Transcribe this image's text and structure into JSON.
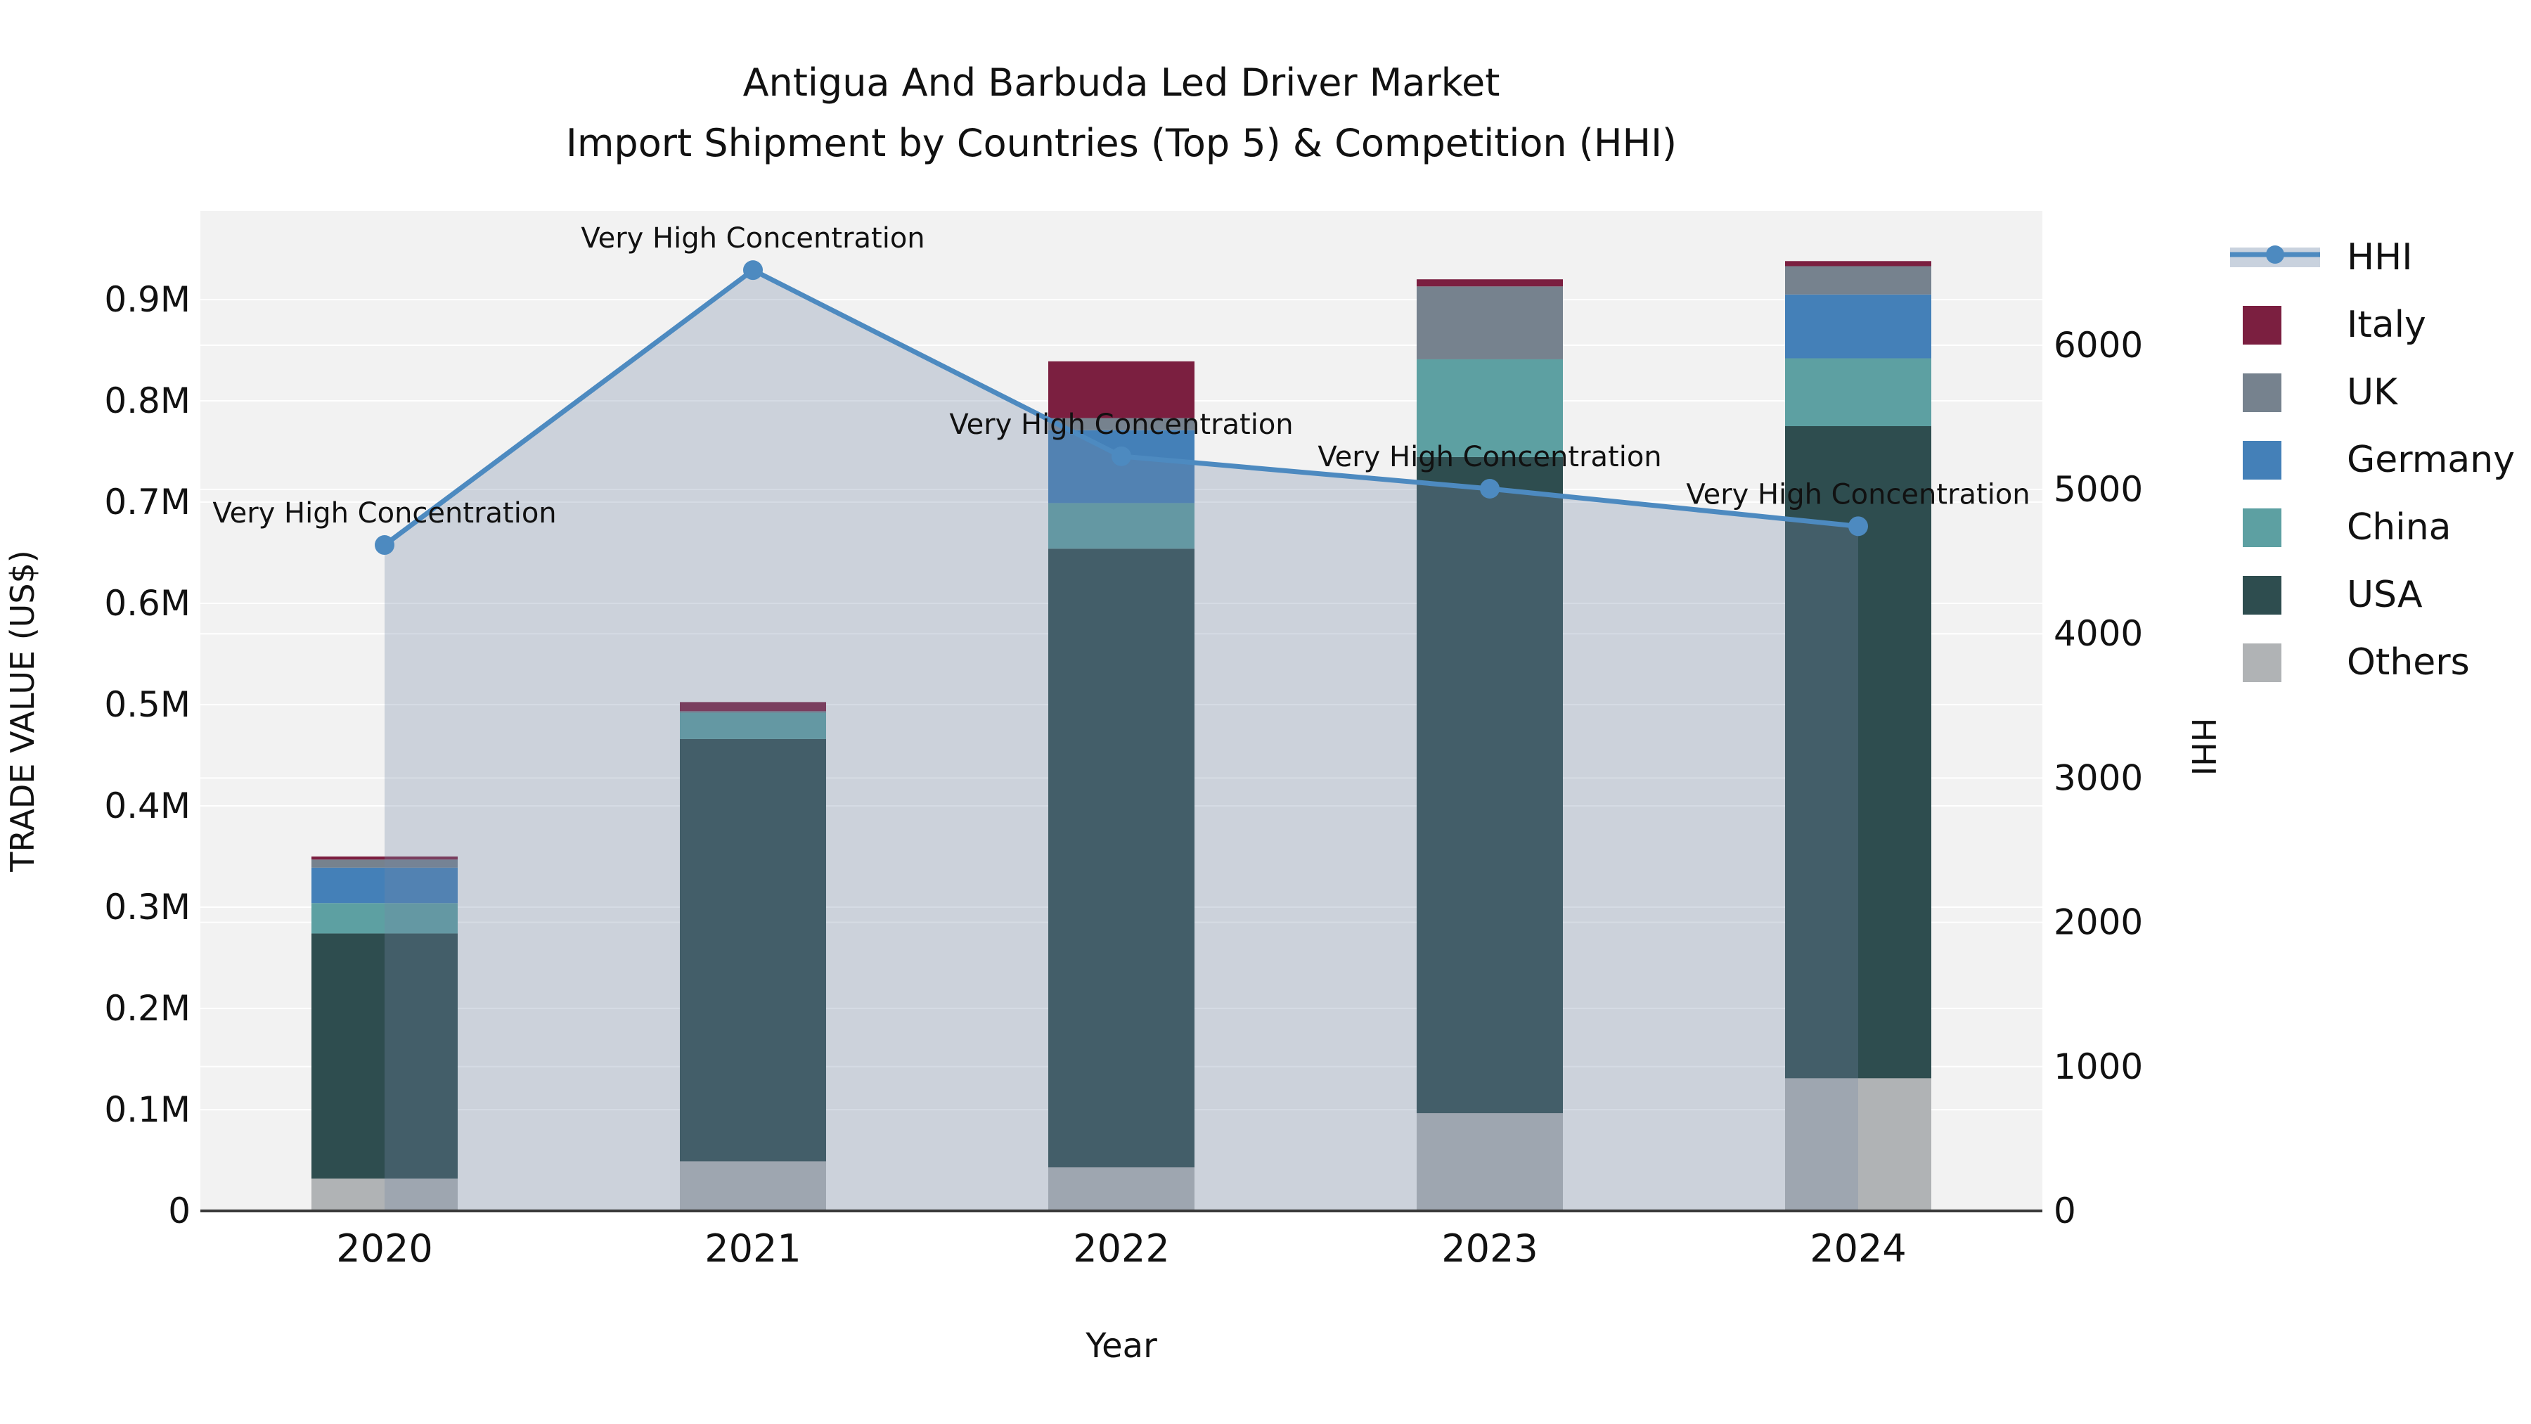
{
  "title": {
    "line1": "Antigua And Barbuda Led Driver Market",
    "line2": "Import Shipment by Countries (Top 5) & Competition (HHI)"
  },
  "axes": {
    "left_label": "TRADE VALUE (US$)",
    "right_label": "HHI",
    "x_label": "Year",
    "left_ticks": [
      {
        "v": 0,
        "label": "0"
      },
      {
        "v": 100000,
        "label": "0.1M"
      },
      {
        "v": 200000,
        "label": "0.2M"
      },
      {
        "v": 300000,
        "label": "0.3M"
      },
      {
        "v": 400000,
        "label": "0.4M"
      },
      {
        "v": 500000,
        "label": "0.5M"
      },
      {
        "v": 600000,
        "label": "0.6M"
      },
      {
        "v": 700000,
        "label": "0.7M"
      },
      {
        "v": 800000,
        "label": "0.8M"
      },
      {
        "v": 900000,
        "label": "0.9M"
      }
    ],
    "right_ticks": [
      {
        "v": 0,
        "label": "0"
      },
      {
        "v": 1000,
        "label": "1000"
      },
      {
        "v": 2000,
        "label": "2000"
      },
      {
        "v": 3000,
        "label": "3000"
      },
      {
        "v": 4000,
        "label": "4000"
      },
      {
        "v": 5000,
        "label": "5000"
      },
      {
        "v": 6000,
        "label": "6000"
      }
    ]
  },
  "legend": {
    "items": [
      {
        "label": "HHI",
        "type": "line",
        "color": "#4D8AC0"
      },
      {
        "label": "Italy",
        "type": "box",
        "color": "#7B1F40"
      },
      {
        "label": "UK",
        "type": "box",
        "color": "#76828E"
      },
      {
        "label": "Germany",
        "type": "box",
        "color": "#4480B8"
      },
      {
        "label": "China",
        "type": "box",
        "color": "#5DA0A2"
      },
      {
        "label": "USA",
        "type": "box",
        "color": "#2E4D4F"
      },
      {
        "label": "Others",
        "type": "box",
        "color": "#B0B3B5"
      }
    ]
  },
  "annotation_text": "Very High Concentration",
  "colors": {
    "plot_bg": "#f2f2f2",
    "grid": "#ffffff",
    "spine": "#3a3a3a",
    "text": "#111111",
    "hhi_line": "#4D8AC0",
    "hhi_fill": "rgba(115,135,165,0.30)",
    "hhi_legend_band": "#c9d2de"
  },
  "chart_data": {
    "type": "bar+line (stacked bars, dual axis)",
    "categories": [
      "2020",
      "2021",
      "2022",
      "2023",
      "2024"
    ],
    "bar_unit": "US$",
    "stack_order_bottom_to_top": [
      "Others",
      "USA",
      "China",
      "Germany",
      "UK",
      "Italy"
    ],
    "series": [
      {
        "name": "Others",
        "axis": "left",
        "values": [
          32000,
          49000,
          43000,
          96500,
          131000
        ]
      },
      {
        "name": "USA",
        "axis": "left",
        "values": [
          242000,
          417000,
          611000,
          648000,
          644000
        ]
      },
      {
        "name": "China",
        "axis": "left",
        "values": [
          30000,
          26000,
          45000,
          96500,
          67000
        ]
      },
      {
        "name": "Germany",
        "axis": "left",
        "values": [
          35000,
          0,
          72000,
          0,
          63000
        ]
      },
      {
        "name": "UK",
        "axis": "left",
        "values": [
          8000,
          1500,
          12000,
          72000,
          28000
        ]
      },
      {
        "name": "Italy",
        "axis": "left",
        "values": [
          3000,
          9000,
          56000,
          7000,
          5000
        ]
      },
      {
        "name": "HHI",
        "axis": "right",
        "values": [
          4615,
          6520,
          5230,
          5005,
          4745
        ]
      }
    ],
    "bar_totals": [
      350000,
      502500,
      839000,
      920000,
      938000
    ],
    "annotations": [
      "Very High Concentration",
      "Very High Concentration",
      "Very High Concentration",
      "Very High Concentration",
      "Very High Concentration"
    ],
    "title": "Antigua And Barbuda Led Driver Market\nImport Shipment by Countries (Top 5) & Competition (HHI)",
    "xlabel": "Year",
    "ylabel_left": "TRADE VALUE (US$)",
    "ylabel_right": "HHI",
    "ylim_left": [
      0,
      987500
    ],
    "ylim_right": [
      0,
      6930
    ],
    "grid": true,
    "legend_position": "right"
  }
}
